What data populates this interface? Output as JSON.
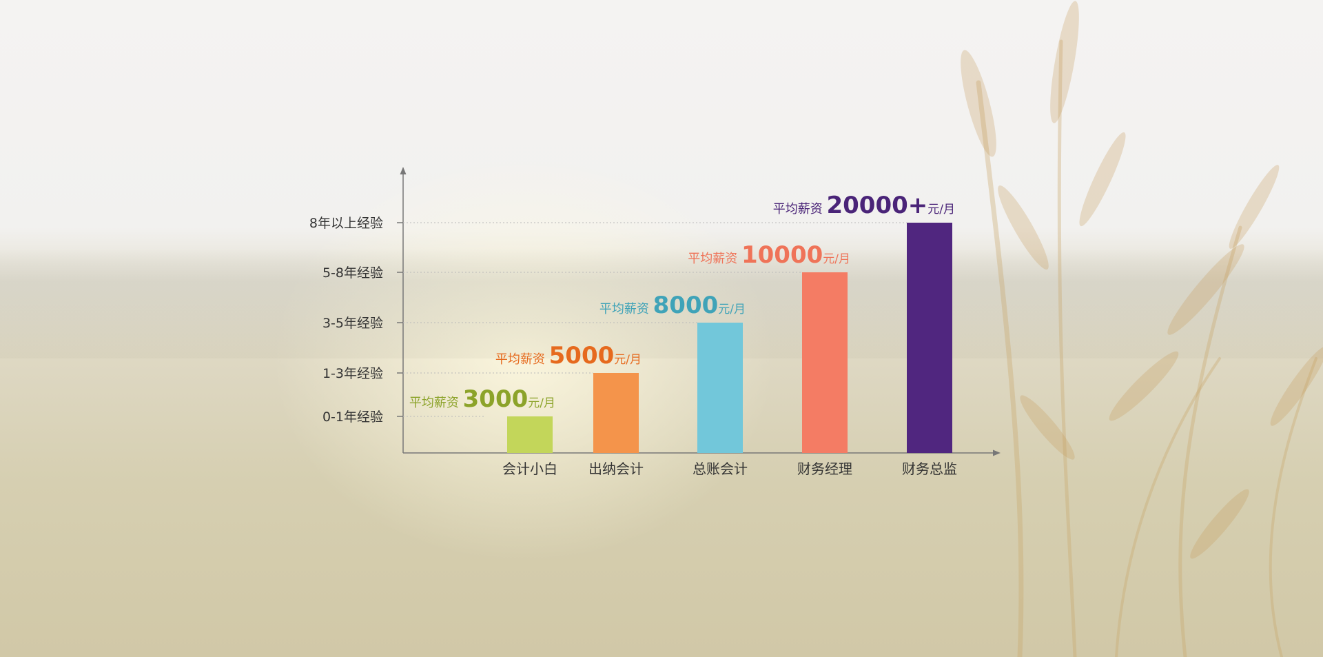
{
  "chart_data": {
    "type": "bar",
    "categories": [
      "会计小白",
      "出纳会计",
      "总账会计",
      "财务经理",
      "财务总监"
    ],
    "y_ticks": [
      "0-1年经验",
      "1-3年经验",
      "3-5年经验",
      "5-8年经验",
      "8年以上经验"
    ],
    "values": [
      1,
      2,
      3,
      4,
      5
    ],
    "annotations": [
      {
        "prefix": "平均薪资",
        "value": "3000",
        "unit": "元/月"
      },
      {
        "prefix": "平均薪资",
        "value": "5000",
        "unit": "元/月"
      },
      {
        "prefix": "平均薪资",
        "value": "8000",
        "unit": "元/月"
      },
      {
        "prefix": "平均薪资",
        "value": "10000",
        "unit": "元/月"
      },
      {
        "prefix": "平均薪资",
        "value": "20000+",
        "unit": "元/月"
      }
    ],
    "salary_values": [
      3000,
      5000,
      8000,
      10000,
      20000
    ],
    "colors": [
      "#c3d65a",
      "#f4944b",
      "#72c7da",
      "#f47c64",
      "#50267f"
    ],
    "annotation_colors": [
      "#8ca32a",
      "#e66a1e",
      "#3fa3b8",
      "#ef7358",
      "#4a2478"
    ],
    "grid": true,
    "legend": "none"
  }
}
